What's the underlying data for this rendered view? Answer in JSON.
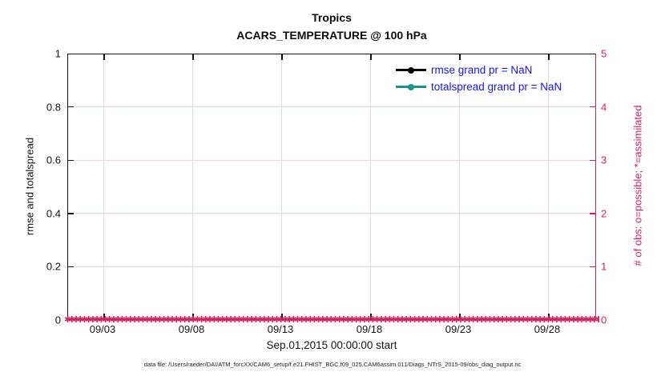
{
  "title": {
    "line1": "Tropics",
    "line2": "ACARS_TEMPERATURE @ 100 hPa"
  },
  "left_axis": {
    "label": "rmse and totalspread",
    "ticks": [
      "1",
      "0.8",
      "0.6",
      "0.4",
      "0.2",
      "0"
    ]
  },
  "right_axis": {
    "label": "# of obs: o=possible; *=assimilated",
    "ticks": [
      "5",
      "4",
      "3",
      "2",
      "1",
      "0"
    ],
    "color": "#d81f5f"
  },
  "x_axis": {
    "ticks": [
      "09/03",
      "09/08",
      "09/13",
      "09/18",
      "09/23",
      "09/28"
    ],
    "label": "Sep.01,2015 00:00:00 start"
  },
  "legend": {
    "items": [
      {
        "label": "rmse grand pr = NaN",
        "color": "#000000"
      },
      {
        "label": "totalspread grand pr = NaN",
        "color": "#17948c"
      }
    ],
    "text_color": "#1414f0"
  },
  "markers": {
    "glyph": "✱",
    "count": 200,
    "color": "#d81f5f"
  },
  "caption": "data file: /Users/raeder/DAI/ATM_forcXX/CAM6_setup/f.e21.FHIST_BGC.f09_025.CAM6assim.011/Diags_NTrS_2015-09/obs_diag_output.nc",
  "chart_data": {
    "type": "line",
    "title": "Tropics",
    "subtitle": "ACARS_TEMPERATURE @ 100 hPa",
    "xlabel": "Sep.01,2015 00:00:00 start",
    "ylabel_left": "rmse and totalspread",
    "ylabel_right": "# of obs: o=possible; *=assimilated",
    "ylim_left": [
      0,
      1
    ],
    "ylim_right": [
      0,
      5
    ],
    "x_range": [
      "2015-09-01",
      "2015-10-01"
    ],
    "x_tick_labels": [
      "09/03",
      "09/08",
      "09/13",
      "09/18",
      "09/23",
      "09/28"
    ],
    "grid": true,
    "legend_position": "upper right",
    "series": [
      {
        "name": "rmse",
        "grand_pr": "NaN",
        "values": "NaN (no curve drawn)",
        "color": "#000000"
      },
      {
        "name": "totalspread",
        "grand_pr": "NaN",
        "values": "NaN (no curve drawn)",
        "color": "#17948c"
      },
      {
        "name": "# of obs possible (o)",
        "constant_value": 0,
        "axis": "right",
        "color": "#d81f5f"
      },
      {
        "name": "# of obs assimilated (*)",
        "constant_value": 0,
        "axis": "right",
        "color": "#d81f5f"
      }
    ]
  }
}
